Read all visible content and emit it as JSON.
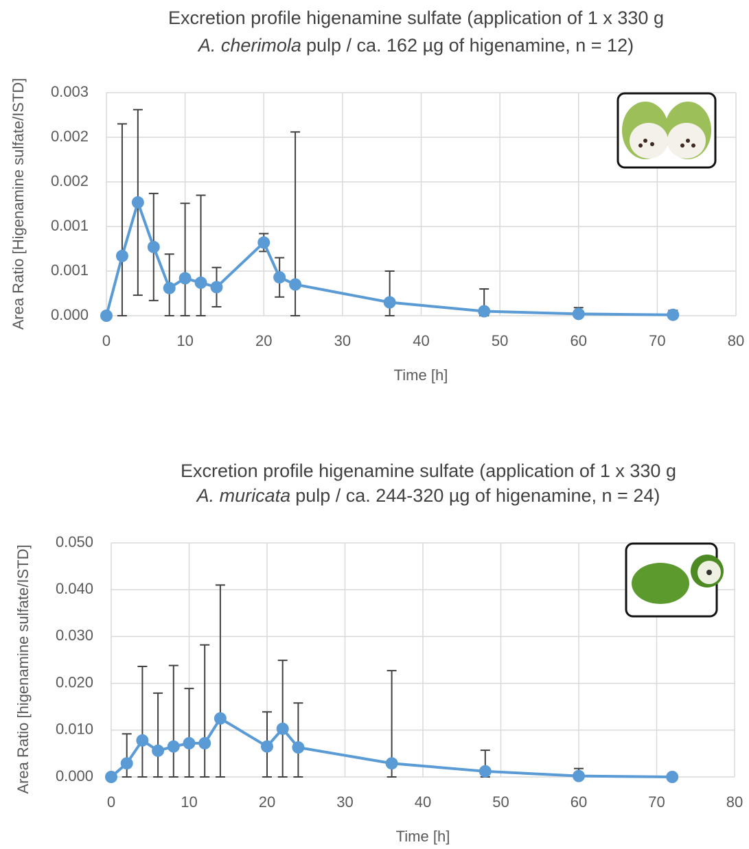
{
  "chart_data": [
    {
      "type": "line",
      "title_line1": "Excretion profile higenamine sulfate (application of 1 x 330 g",
      "title_species": "A. cherimola",
      "title_rest": "pulp / ca. 162 µg of higenamine, n = 12)",
      "x_label": "Time [h]",
      "y_label": "Area Ratio [Higenamine sulfate/ISTD]",
      "xlim": [
        0,
        80
      ],
      "xticks": [
        0,
        10,
        20,
        30,
        40,
        50,
        60,
        70,
        80
      ],
      "ylim": [
        0,
        0.0025
      ],
      "yticks": [
        {
          "value": 0,
          "label": "0.000"
        },
        {
          "value": 0.0005,
          "label": "0.001"
        },
        {
          "value": 0.001,
          "label": "0.001"
        },
        {
          "value": 0.0015,
          "label": "0.002"
        },
        {
          "value": 0.002,
          "label": "0.002"
        },
        {
          "value": 0.0025,
          "label": "0.003"
        }
      ],
      "grid": true,
      "x": [
        0,
        2,
        4,
        6,
        8,
        10,
        12,
        14,
        20,
        22,
        24,
        36,
        48,
        60,
        72
      ],
      "series": [
        {
          "color": "#5b9bd5",
          "values": [
            0,
            0.00067,
            0.00127,
            0.00077,
            0.00031,
            0.00042,
            0.00037,
            0.00032,
            0.00082,
            0.00043,
            0.00035,
            0.00015,
            5e-05,
            2e-05,
            1e-05
          ],
          "errors": [
            0,
            0.00148,
            0.00104,
            0.0006,
            0.00038,
            0.00084,
            0.00098,
            0.00022,
            0.0001,
            0.00022,
            0.00171,
            0.00035,
            0.00025,
            7e-05,
            5e-05
          ]
        }
      ]
    },
    {
      "type": "line",
      "title_line1": "Excretion profile higenamine sulfate (application of 1 x 330 g",
      "title_species": "A. muricata",
      "title_rest": "pulp / ca. 244-320 µg of higenamine, n = 24)",
      "x_label": "Time [h]",
      "y_label": "Area Ratio [higenamine sulfate/ISTD]",
      "xlim": [
        0,
        80
      ],
      "xticks": [
        0,
        10,
        20,
        30,
        40,
        50,
        60,
        70,
        80
      ],
      "ylim": [
        0,
        0.05
      ],
      "yticks": [
        {
          "value": 0,
          "label": "0.000"
        },
        {
          "value": 0.01,
          "label": "0.010"
        },
        {
          "value": 0.02,
          "label": "0.020"
        },
        {
          "value": 0.03,
          "label": "0.030"
        },
        {
          "value": 0.04,
          "label": "0.040"
        },
        {
          "value": 0.05,
          "label": "0.050"
        }
      ],
      "grid": true,
      "x": [
        0,
        2,
        4,
        6,
        8,
        10,
        12,
        14,
        20,
        22,
        24,
        36,
        48,
        60,
        72
      ],
      "series": [
        {
          "color": "#5b9bd5",
          "values": [
            0,
            0.0029,
            0.0078,
            0.0056,
            0.0065,
            0.0072,
            0.0072,
            0.0125,
            0.0065,
            0.0103,
            0.0063,
            0.0029,
            0.0012,
            0.0002,
            0
          ],
          "errors": [
            0,
            0.0063,
            0.0158,
            0.0123,
            0.0173,
            0.0117,
            0.021,
            0.0285,
            0.0074,
            0.0146,
            0.0095,
            0.0198,
            0.0045,
            0.0016,
            0
          ]
        }
      ]
    }
  ]
}
